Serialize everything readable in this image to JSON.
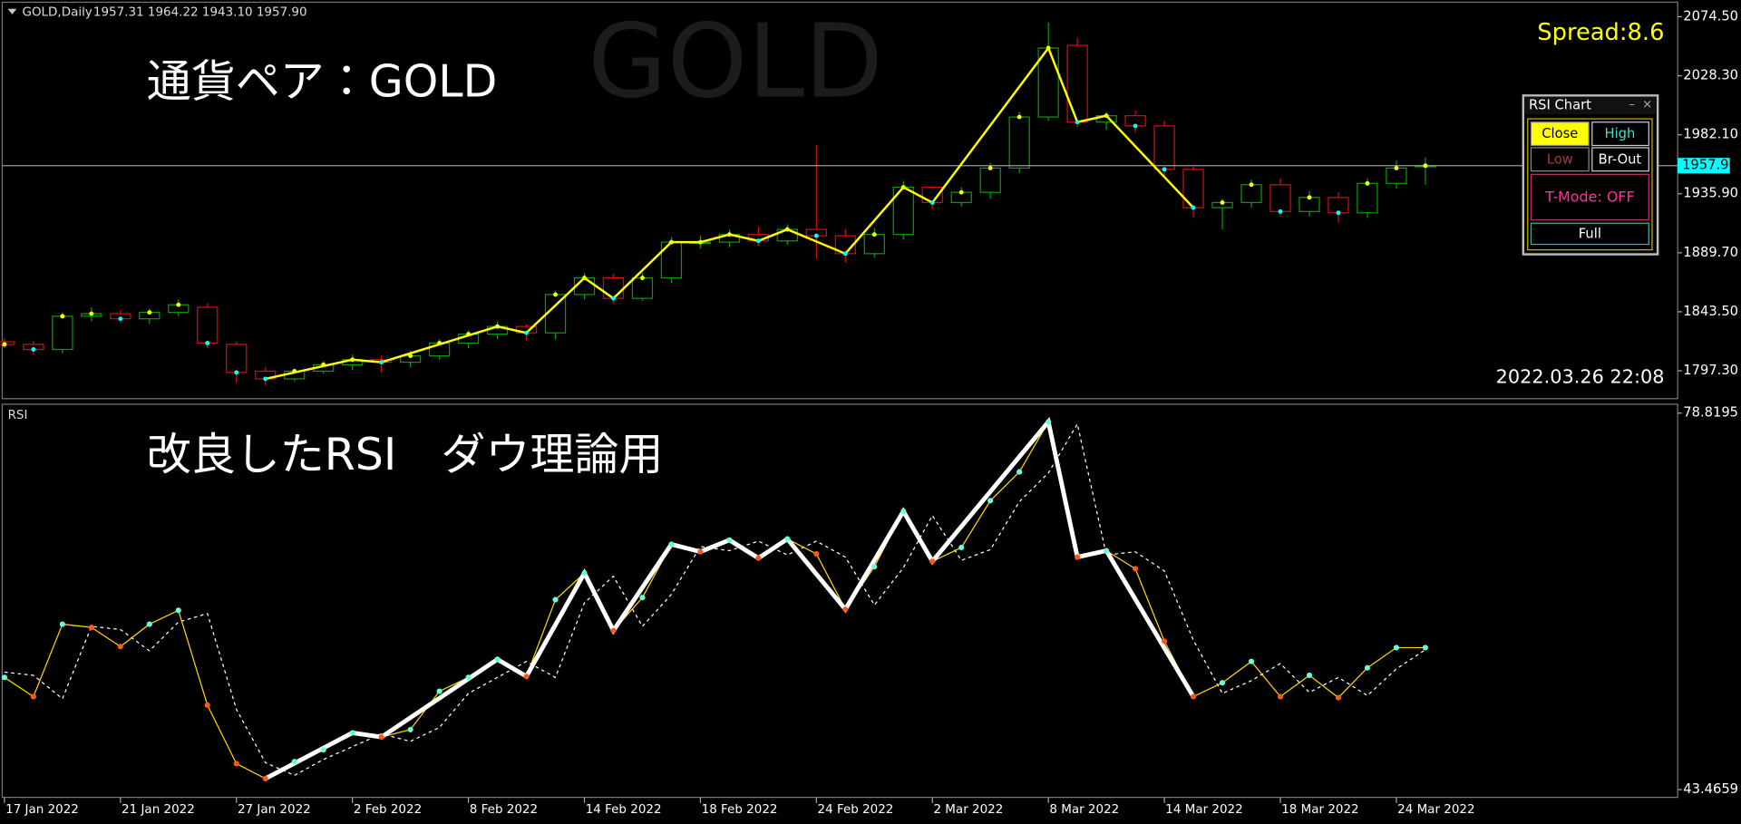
{
  "header": {
    "symbol": "GOLD,Daily",
    "ohlc": "1957.31 1964.22 1943.10 1957.90"
  },
  "watermark": "GOLD",
  "overlay_title": "通貨ペア：GOLD",
  "spread": "Spread:8.6",
  "timestamp": "2022.03.26 22:08",
  "current_price": {
    "value": 1957.9,
    "label": "1957.90"
  },
  "dates": {
    "categories": [
      "17 Jan 2022",
      null,
      null,
      null,
      "21 Jan 2022",
      null,
      null,
      null,
      "27 Jan 2022",
      null,
      null,
      null,
      "2 Feb 2022",
      null,
      null,
      null,
      "8 Feb 2022",
      null,
      null,
      null,
      "14 Feb 2022",
      null,
      null,
      null,
      "18 Feb 2022",
      null,
      null,
      null,
      "24 Feb 2022",
      null,
      null,
      null,
      "2 Mar 2022",
      null,
      null,
      null,
      "8 Mar 2022",
      null,
      null,
      null,
      "14 Mar 2022",
      null,
      null,
      null,
      "18 Mar 2022",
      null,
      null,
      null,
      "24 Mar 2022",
      null
    ]
  },
  "price_chart": {
    "type": "candlestick",
    "ylim": [
      1774.6,
      2087.6
    ],
    "yticks": [
      {
        "value": 2074.5,
        "label": "2074.50"
      },
      {
        "value": 2028.3,
        "label": "2028.30"
      },
      {
        "value": 1982.1,
        "label": "1982.10"
      },
      {
        "value": 1935.9,
        "label": "1935.90"
      },
      {
        "value": 1889.7,
        "label": "1889.70"
      },
      {
        "value": 1843.5,
        "label": "1843.50"
      },
      {
        "value": 1797.3,
        "label": "1797.30"
      }
    ],
    "open": [
      1820,
      1818,
      1814,
      1840,
      1842,
      1838,
      1843,
      1847,
      1818,
      1797,
      1791,
      1797,
      1802,
      1806,
      1804,
      1809,
      1819,
      1826,
      1832,
      1827,
      1857,
      1870,
      1854,
      1870,
      1898,
      1898,
      1904,
      1899,
      1908,
      1903,
      1889,
      1904,
      1941,
      1929,
      1937,
      1956,
      1996,
      2052,
      1992,
      1997,
      1989,
      1955,
      1925,
      1929,
      1943,
      1922,
      1933,
      1921,
      1944,
      1957.31
    ],
    "high": [
      1823,
      1821,
      1843,
      1847,
      1845,
      1846,
      1853,
      1850,
      1820,
      1800,
      1799,
      1805,
      1810,
      1809,
      1813,
      1822,
      1829,
      1836,
      1834,
      1860,
      1874,
      1873,
      1874,
      1902,
      1903,
      1908,
      1910,
      1912,
      1974,
      1908,
      1909,
      1946,
      1938,
      1941,
      1960,
      2000,
      2070,
      2058,
      2000,
      2001,
      1993,
      1957,
      1932,
      1947,
      1948,
      1938,
      1937,
      1948,
      1962,
      1964.22
    ],
    "low": [
      1815,
      1810,
      1811,
      1836,
      1835,
      1834,
      1840,
      1815,
      1788,
      1786,
      1789,
      1795,
      1798,
      1796,
      1800,
      1806,
      1815,
      1822,
      1821,
      1822,
      1853,
      1850,
      1852,
      1866,
      1893,
      1894,
      1895,
      1896,
      1885,
      1882,
      1886,
      1900,
      1924,
      1926,
      1932,
      1952,
      1993,
      1988,
      1986,
      1984,
      1950,
      1917,
      1908,
      1925,
      1918,
      1918,
      1913,
      1917,
      1940,
      1943.1
    ],
    "close": [
      1818,
      1814,
      1840,
      1842,
      1838,
      1843,
      1849,
      1819,
      1796,
      1791,
      1797,
      1802,
      1806,
      1804,
      1809,
      1819,
      1826,
      1832,
      1827,
      1857,
      1870,
      1854,
      1870,
      1898,
      1898,
      1904,
      1899,
      1908,
      1903,
      1889,
      1904,
      1941,
      1929,
      1937,
      1956,
      1996,
      2050,
      1992,
      1997,
      1989,
      1955,
      1925,
      1929,
      1943,
      1922,
      1933,
      1921,
      1944,
      1956,
      1957.9
    ],
    "up_color": "#0a9a0a",
    "down_color": "#d01010",
    "zigzag": {
      "indices": [
        9,
        12,
        13,
        17,
        18,
        20,
        21,
        23,
        24,
        25,
        26,
        27,
        29,
        31,
        32,
        36,
        37,
        38,
        41
      ],
      "color": "#ffff00"
    }
  },
  "rsi_chart": {
    "type": "line",
    "label": "RSI",
    "overlay_title": "改良したRSI　ダウ理論用",
    "ylim": [
      42.74,
      79.76
    ],
    "yticks": [
      78.8195,
      43.4659
    ],
    "series": [
      {
        "values": [
          54.0,
          52.2,
          59.0,
          58.7,
          56.9,
          59.0,
          60.3,
          51.4,
          45.9,
          44.5,
          46.1,
          47.2,
          48.8,
          48.4,
          49.1,
          52.7,
          54.0,
          55.7,
          54.1,
          61.3,
          63.8,
          58.4,
          61.5,
          66.5,
          65.8,
          66.9,
          65.2,
          67.0,
          65.6,
          60.4,
          64.4,
          69.6,
          64.9,
          66.2,
          70.6,
          73.3,
          78.0,
          65.3,
          65.9,
          64.2,
          57.4,
          52.2,
          53.5,
          55.5,
          52.2,
          54.2,
          52.1,
          54.9,
          56.8,
          56.8
        ],
        "color": "#ffd700"
      },
      {
        "values": [
          54.5,
          54.2,
          52.0,
          58.8,
          58.5,
          56.5,
          59.2,
          60.0,
          51.0,
          46.0,
          44.8,
          46.3,
          47.5,
          48.7,
          48.0,
          49.3,
          52.5,
          54.0,
          55.5,
          54.0,
          61.0,
          63.5,
          58.8,
          61.8,
          66.3,
          65.9,
          66.8,
          65.5,
          66.8,
          65.3,
          60.8,
          64.3,
          69.2,
          65.0,
          66.0,
          70.5,
          73.2,
          77.8,
          65.5,
          65.8,
          64.0,
          57.5,
          52.5,
          53.7,
          55.3,
          52.6,
          54.0,
          52.3,
          54.8,
          56.6
        ],
        "color": "#ffffff"
      }
    ],
    "zigzag": {
      "indices": [
        9,
        12,
        13,
        17,
        18,
        20,
        21,
        23,
        24,
        25,
        26,
        27,
        29,
        31,
        32,
        36,
        37,
        38,
        41
      ],
      "color": "#ffffff"
    }
  },
  "panel": {
    "title": "RSI Chart",
    "buttons": [
      "Close",
      "High",
      "Low",
      "Br-Out",
      "T-Mode: OFF",
      "Full"
    ]
  }
}
